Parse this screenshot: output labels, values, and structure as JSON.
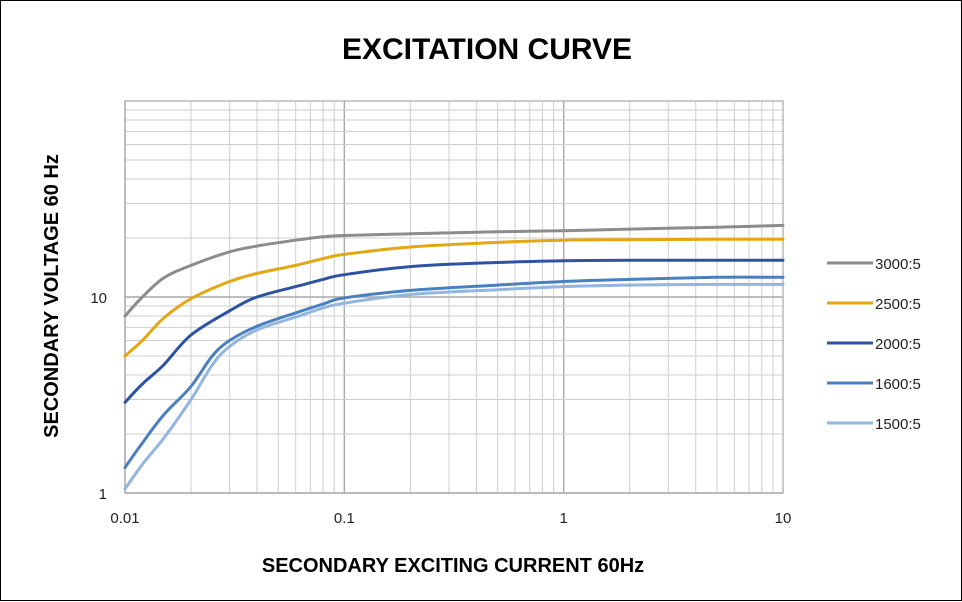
{
  "chart_data": {
    "type": "line",
    "title": "EXCITATION CURVE",
    "xlabel": "SECONDARY EXCITING CURRENT 60Hz",
    "ylabel": "SECONDARY VOLTAGE 60 Hz",
    "x_scale": "log",
    "y_scale": "log",
    "xlim": [
      0.01,
      10
    ],
    "ylim": [
      1,
      100
    ],
    "x_ticks": [
      {
        "value": 0.01,
        "label": "0.01"
      },
      {
        "value": 0.1,
        "label": "0.1"
      },
      {
        "value": 1,
        "label": "1"
      },
      {
        "value": 10,
        "label": "10"
      }
    ],
    "y_ticks": [
      {
        "value": 1,
        "label": "1"
      },
      {
        "value": 10,
        "label": "10"
      }
    ],
    "grid": true,
    "legend_position": "right",
    "series": [
      {
        "name": "3000:5",
        "color": "#8c8c8c",
        "points": [
          [
            0.01,
            8
          ],
          [
            0.012,
            10
          ],
          [
            0.015,
            12.5
          ],
          [
            0.02,
            14.5
          ],
          [
            0.03,
            17
          ],
          [
            0.04,
            18.2
          ],
          [
            0.06,
            19.5
          ],
          [
            0.08,
            20.3
          ],
          [
            0.1,
            20.6
          ],
          [
            0.2,
            21
          ],
          [
            0.5,
            21.5
          ],
          [
            1,
            21.8
          ],
          [
            2,
            22.2
          ],
          [
            5,
            22.7
          ],
          [
            10,
            23.2
          ]
        ]
      },
      {
        "name": "2500:5",
        "color": "#e3a713",
        "points": [
          [
            0.01,
            5
          ],
          [
            0.012,
            6
          ],
          [
            0.015,
            7.8
          ],
          [
            0.02,
            9.8
          ],
          [
            0.03,
            12
          ],
          [
            0.04,
            13.2
          ],
          [
            0.06,
            14.5
          ],
          [
            0.08,
            15.7
          ],
          [
            0.1,
            16.5
          ],
          [
            0.2,
            18
          ],
          [
            0.5,
            19
          ],
          [
            1,
            19.5
          ],
          [
            2,
            19.6
          ],
          [
            5,
            19.7
          ],
          [
            10,
            19.7
          ]
        ]
      },
      {
        "name": "2000:5",
        "color": "#2e53a3",
        "points": [
          [
            0.01,
            2.9
          ],
          [
            0.012,
            3.6
          ],
          [
            0.015,
            4.5
          ],
          [
            0.02,
            6.4
          ],
          [
            0.03,
            8.5
          ],
          [
            0.04,
            10
          ],
          [
            0.06,
            11.3
          ],
          [
            0.08,
            12.3
          ],
          [
            0.1,
            13
          ],
          [
            0.2,
            14.3
          ],
          [
            0.5,
            15
          ],
          [
            1,
            15.3
          ],
          [
            2,
            15.4
          ],
          [
            5,
            15.4
          ],
          [
            10,
            15.4
          ]
        ]
      },
      {
        "name": "1600:5",
        "color": "#4a7fc0",
        "points": [
          [
            0.01,
            1.35
          ],
          [
            0.012,
            1.8
          ],
          [
            0.015,
            2.5
          ],
          [
            0.02,
            3.5
          ],
          [
            0.025,
            5
          ],
          [
            0.03,
            6
          ],
          [
            0.04,
            7.1
          ],
          [
            0.06,
            8.3
          ],
          [
            0.08,
            9.2
          ],
          [
            0.1,
            9.9
          ],
          [
            0.2,
            10.8
          ],
          [
            0.5,
            11.5
          ],
          [
            1,
            12
          ],
          [
            2,
            12.3
          ],
          [
            5,
            12.6
          ],
          [
            10,
            12.6
          ]
        ]
      },
      {
        "name": "1500:5",
        "color": "#92b6e0",
        "points": [
          [
            0.01,
            1.05
          ],
          [
            0.012,
            1.4
          ],
          [
            0.015,
            1.9
          ],
          [
            0.02,
            3
          ],
          [
            0.025,
            4.5
          ],
          [
            0.03,
            5.6
          ],
          [
            0.04,
            6.8
          ],
          [
            0.06,
            7.9
          ],
          [
            0.08,
            8.8
          ],
          [
            0.1,
            9.3
          ],
          [
            0.2,
            10.3
          ],
          [
            0.5,
            10.9
          ],
          [
            1,
            11.3
          ],
          [
            2,
            11.5
          ],
          [
            5,
            11.6
          ],
          [
            10,
            11.6
          ]
        ]
      }
    ]
  }
}
